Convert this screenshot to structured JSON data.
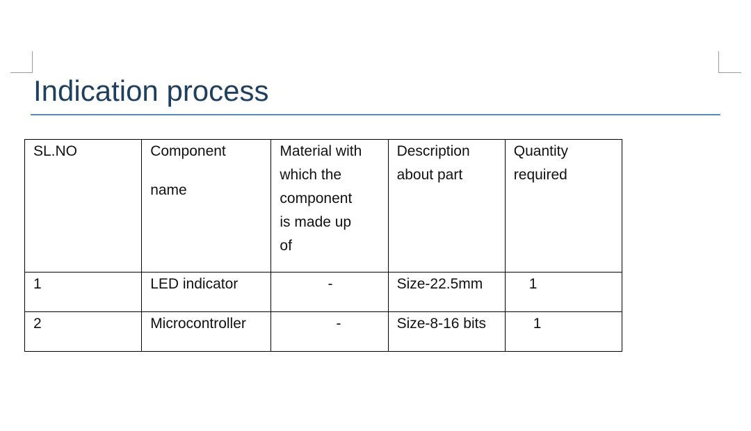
{
  "document": {
    "heading": "Indication process",
    "table": {
      "headers": {
        "sl_no": "SL.NO",
        "component_line1": "Component",
        "component_line2": "name",
        "material_line1": "Material with",
        "material_line2": "which the",
        "material_line3": "component",
        "material_line4": "is made up",
        "material_line5": "of",
        "description_line1": "Description",
        "description_line2": "about part",
        "quantity_line1": "Quantity",
        "quantity_line2": "required"
      },
      "rows": [
        {
          "sl_no": "1",
          "component": "LED indicator",
          "material": "-",
          "description": "Size-22.5mm",
          "quantity": "1"
        },
        {
          "sl_no": "2",
          "component": "Microcontroller",
          "material": "-",
          "description": "Size-8-16 bits",
          "quantity": "1"
        }
      ]
    }
  }
}
